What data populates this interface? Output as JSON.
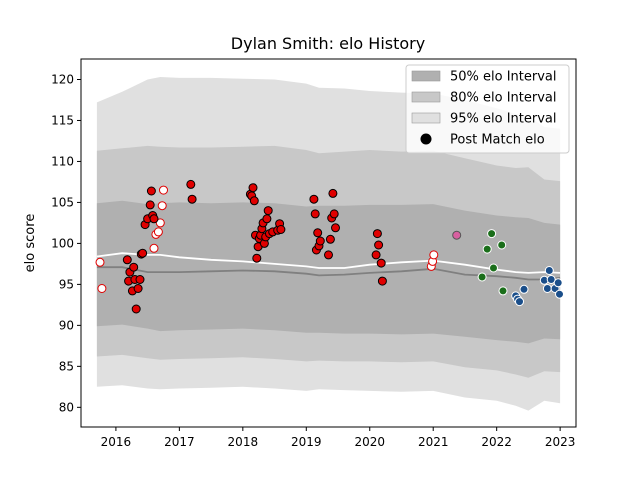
{
  "chart_data": {
    "type": "scatter",
    "title": "Dylan Smith: elo History",
    "xlabel": "",
    "ylabel": "elo score",
    "xlim": [
      2015.45,
      2023.25
    ],
    "ylim": [
      77.6,
      122.5
    ],
    "x_ticks": [
      2016,
      2017,
      2018,
      2019,
      2020,
      2021,
      2022,
      2023
    ],
    "y_ticks": [
      80,
      85,
      90,
      95,
      100,
      105,
      110,
      115,
      120
    ],
    "legend_position": "top-right",
    "legend": [
      {
        "label": "50% elo Interval",
        "kind": "patch",
        "color": "#b0b0b0"
      },
      {
        "label": "80% elo Interval",
        "kind": "patch",
        "color": "#c8c8c8"
      },
      {
        "label": "95% elo Interval",
        "kind": "patch",
        "color": "#e0e0e0"
      },
      {
        "label": "Post Match elo",
        "kind": "marker",
        "color": "#000000"
      }
    ],
    "bands": [
      {
        "name": "95% elo Interval",
        "color": "#e0e0e0",
        "x": [
          2015.7,
          2016.1,
          2016.5,
          2016.7,
          2017.0,
          2017.5,
          2018.0,
          2018.5,
          2019.0,
          2019.2,
          2019.6,
          2020.0,
          2020.5,
          2021.0,
          2021.5,
          2022.0,
          2022.3,
          2022.5,
          2022.75,
          2023.0
        ],
        "upper": [
          117.2,
          118.5,
          120.0,
          120.3,
          120.2,
          120.2,
          120.1,
          120.0,
          119.5,
          119.0,
          118.9,
          118.6,
          118.4,
          118.3,
          117.5,
          116.5,
          115.8,
          115.5,
          114.2,
          114.0
        ],
        "lower": [
          82.5,
          82.7,
          82.3,
          82.2,
          82.3,
          82.4,
          82.5,
          82.3,
          82.0,
          82.2,
          82.1,
          82.0,
          81.9,
          82.0,
          81.2,
          80.8,
          80.2,
          79.6,
          80.8,
          80.5
        ]
      },
      {
        "name": "80% elo Interval",
        "color": "#c8c8c8",
        "x": [
          2015.7,
          2016.1,
          2016.5,
          2016.7,
          2017.0,
          2017.5,
          2018.0,
          2018.5,
          2019.0,
          2019.2,
          2019.6,
          2020.0,
          2020.5,
          2021.0,
          2021.5,
          2022.0,
          2022.3,
          2022.5,
          2022.75,
          2023.0
        ],
        "upper": [
          111.3,
          111.6,
          111.9,
          111.8,
          111.7,
          111.7,
          111.8,
          111.9,
          111.4,
          111.0,
          111.2,
          111.4,
          111.2,
          111.3,
          110.4,
          109.5,
          109.2,
          109.3,
          107.8,
          107.6
        ],
        "lower": [
          86.2,
          86.4,
          86.0,
          85.8,
          85.9,
          86.0,
          86.1,
          85.9,
          85.6,
          85.7,
          85.6,
          85.6,
          85.5,
          85.6,
          84.9,
          84.5,
          84.0,
          83.6,
          84.4,
          84.3
        ]
      },
      {
        "name": "50% elo Interval",
        "color": "#b0b0b0",
        "x": [
          2015.7,
          2016.1,
          2016.5,
          2016.7,
          2017.0,
          2017.5,
          2018.0,
          2018.5,
          2019.0,
          2019.2,
          2019.6,
          2020.0,
          2020.5,
          2021.0,
          2021.5,
          2022.0,
          2022.3,
          2022.5,
          2022.75,
          2023.0
        ],
        "upper": [
          104.9,
          105.2,
          104.8,
          104.9,
          105.0,
          104.9,
          105.0,
          104.9,
          104.5,
          104.6,
          104.6,
          104.7,
          104.7,
          104.8,
          104.0,
          103.4,
          103.2,
          103.1,
          102.5,
          102.3
        ],
        "lower": [
          89.9,
          90.1,
          89.6,
          89.3,
          89.4,
          89.5,
          89.6,
          89.4,
          89.1,
          89.1,
          89.0,
          89.0,
          88.9,
          89.0,
          88.6,
          88.2,
          88.0,
          87.8,
          88.4,
          88.3
        ]
      }
    ],
    "series": [
      {
        "name": "",
        "kind": "line",
        "color": "#808080",
        "x": [
          2015.7,
          2016.1,
          2016.5,
          2016.7,
          2017.0,
          2017.5,
          2018.0,
          2018.5,
          2019.0,
          2019.2,
          2019.6,
          2020.0,
          2020.5,
          2021.0,
          2021.5,
          2022.0,
          2022.3,
          2022.5,
          2022.75,
          2023.0
        ],
        "y": [
          97.1,
          97.1,
          96.5,
          96.5,
          96.5,
          96.6,
          96.7,
          96.6,
          96.3,
          96.1,
          96.2,
          96.4,
          96.6,
          96.9,
          96.2,
          96.0,
          95.8,
          95.6,
          95.6,
          95.8
        ]
      },
      {
        "name": "",
        "kind": "line",
        "color": "#ffffff",
        "x": [
          2015.7,
          2016.1,
          2016.5,
          2016.7,
          2017.0,
          2017.5,
          2018.0,
          2018.5,
          2019.0,
          2019.2,
          2019.6,
          2020.0,
          2020.5,
          2021.0,
          2021.5,
          2022.0,
          2022.3,
          2022.5,
          2022.75,
          2023.0
        ],
        "y": [
          98.4,
          98.8,
          98.6,
          98.6,
          98.3,
          98.0,
          97.8,
          97.5,
          97.2,
          97.0,
          97.0,
          97.4,
          97.7,
          97.9,
          97.4,
          96.8,
          96.5,
          96.4,
          96.5,
          96.4
        ]
      },
      {
        "name": "",
        "kind": "points",
        "fill": "#ffffff",
        "stroke": "#e00000",
        "x": [
          2015.75,
          2015.78,
          2016.6,
          2016.63,
          2016.67,
          2016.7,
          2016.73,
          2016.75,
          2020.97,
          2020.99,
          2021.01
        ],
        "y": [
          97.7,
          94.5,
          99.4,
          101.1,
          101.4,
          102.5,
          104.6,
          106.5,
          97.2,
          97.8,
          98.6
        ]
      },
      {
        "name": "",
        "kind": "points",
        "fill": "#e00000",
        "stroke": "#000000",
        "x": [
          2016.18,
          2016.2,
          2016.22,
          2016.26,
          2016.28,
          2016.3,
          2016.32,
          2016.35,
          2016.38,
          2016.4,
          2016.42,
          2016.46,
          2016.5,
          2016.54,
          2016.56,
          2016.58,
          2016.6,
          2017.18,
          2017.2,
          2018.12,
          2018.14,
          2018.16,
          2018.18,
          2018.2,
          2018.22,
          2018.24,
          2018.26,
          2018.28,
          2018.3,
          2018.32,
          2018.34,
          2018.36,
          2018.38,
          2018.4,
          2018.42,
          2018.47,
          2018.55,
          2018.58,
          2018.6,
          2019.12,
          2019.14,
          2019.16,
          2019.18,
          2019.2,
          2019.22,
          2019.35,
          2019.38,
          2019.4,
          2019.42,
          2019.44,
          2019.46,
          2020.1,
          2020.12,
          2020.14,
          2020.18,
          2020.2
        ],
        "y": [
          98.0,
          95.4,
          96.5,
          94.2,
          97.1,
          95.6,
          92.0,
          94.5,
          95.6,
          98.7,
          98.8,
          102.3,
          103.0,
          104.7,
          106.4,
          103.4,
          103.0,
          107.2,
          105.4,
          106.0,
          105.8,
          106.8,
          105.2,
          101.0,
          98.2,
          99.6,
          100.6,
          101.0,
          101.8,
          102.5,
          100.0,
          100.8,
          103.0,
          104.0,
          101.2,
          101.4,
          101.6,
          102.4,
          101.7,
          105.4,
          103.6,
          99.2,
          101.3,
          99.7,
          100.3,
          98.6,
          100.5,
          103.1,
          106.1,
          103.6,
          101.9,
          98.6,
          101.2,
          99.8,
          97.6,
          95.4
        ]
      },
      {
        "name": "",
        "kind": "points",
        "fill": "#d860a0",
        "stroke": "#555555",
        "x": [
          2021.37
        ],
        "y": [
          101.0
        ]
      },
      {
        "name": "",
        "kind": "points",
        "fill": "#1a6e1a",
        "stroke": "#ffffff",
        "x": [
          2021.77,
          2021.85,
          2021.92,
          2021.95,
          2022.08,
          2022.1
        ],
        "y": [
          95.9,
          99.3,
          101.2,
          97.0,
          99.8,
          94.2
        ]
      },
      {
        "name": "",
        "kind": "points",
        "fill": "#1a4e8a",
        "stroke": "#ffffff",
        "x": [
          2022.3,
          2022.33,
          2022.36,
          2022.43,
          2022.75,
          2022.8,
          2022.83,
          2022.86,
          2022.92,
          2022.97,
          2022.99
        ],
        "y": [
          93.6,
          93.2,
          92.9,
          94.4,
          95.5,
          94.5,
          96.7,
          95.6,
          94.5,
          95.2,
          93.8
        ]
      }
    ]
  }
}
